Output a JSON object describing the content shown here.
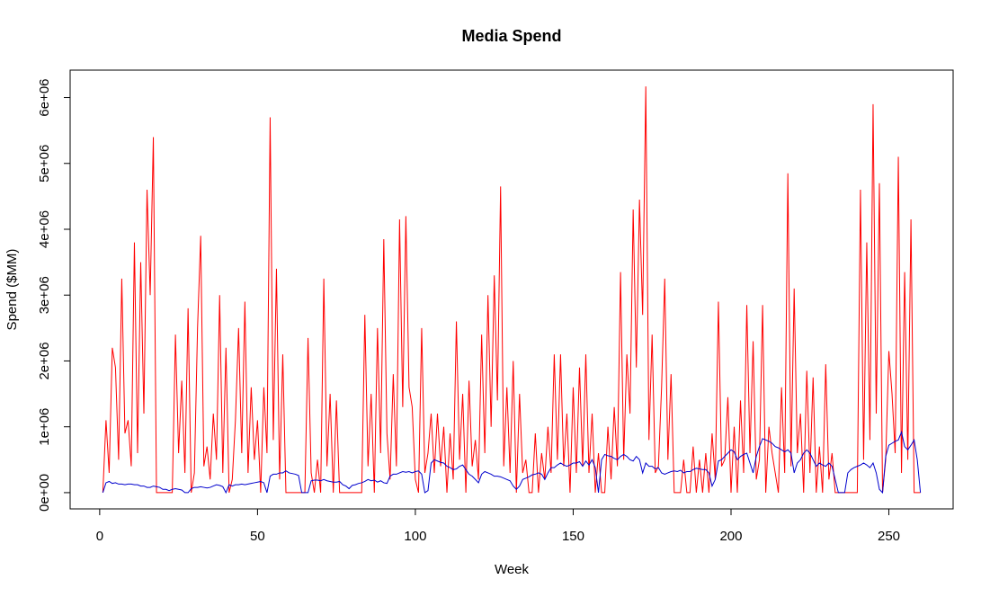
{
  "chart_data": {
    "type": "line",
    "title": "Media Spend",
    "xlabel": "Week",
    "ylabel": "Spend ($MM)",
    "x": [
      1,
      2,
      3,
      4,
      5,
      6,
      7,
      8,
      9,
      10,
      11,
      12,
      13,
      14,
      15,
      16,
      17,
      18,
      19,
      20,
      21,
      22,
      23,
      24,
      25,
      26,
      27,
      28,
      29,
      30,
      31,
      32,
      33,
      34,
      35,
      36,
      37,
      38,
      39,
      40,
      41,
      42,
      43,
      44,
      45,
      46,
      47,
      48,
      49,
      50,
      51,
      52,
      53,
      54,
      55,
      56,
      57,
      58,
      59,
      60,
      61,
      62,
      63,
      64,
      65,
      66,
      67,
      68,
      69,
      70,
      71,
      72,
      73,
      74,
      75,
      76,
      77,
      78,
      79,
      80,
      81,
      82,
      83,
      84,
      85,
      86,
      87,
      88,
      89,
      90,
      91,
      92,
      93,
      94,
      95,
      96,
      97,
      98,
      99,
      100,
      101,
      102,
      103,
      104,
      105,
      106,
      107,
      108,
      109,
      110,
      111,
      112,
      113,
      114,
      115,
      116,
      117,
      118,
      119,
      120,
      121,
      122,
      123,
      124,
      125,
      126,
      127,
      128,
      129,
      130,
      131,
      132,
      133,
      134,
      135,
      136,
      137,
      138,
      139,
      140,
      141,
      142,
      143,
      144,
      145,
      146,
      147,
      148,
      149,
      150,
      151,
      152,
      153,
      154,
      155,
      156,
      157,
      158,
      159,
      160,
      161,
      162,
      163,
      164,
      165,
      166,
      167,
      168,
      169,
      170,
      171,
      172,
      173,
      174,
      175,
      176,
      177,
      178,
      179,
      180,
      181,
      182,
      183,
      184,
      185,
      186,
      187,
      188,
      189,
      190,
      191,
      192,
      193,
      194,
      195,
      196,
      197,
      198,
      199,
      200,
      201,
      202,
      203,
      204,
      205,
      206,
      207,
      208,
      209,
      210,
      211,
      212,
      213,
      214,
      215,
      216,
      217,
      218,
      219,
      220,
      221,
      222,
      223,
      224,
      225,
      226,
      227,
      228,
      229,
      230,
      231,
      232,
      233,
      234,
      235,
      236,
      237,
      238,
      239,
      240,
      241,
      242,
      243,
      244,
      245,
      246,
      247,
      248,
      249,
      250,
      251,
      252,
      253,
      254,
      255,
      256,
      257,
      258,
      259,
      260
    ],
    "series": [
      {
        "color": "#ff0000",
        "values": [
          0,
          1100000.0,
          300000.0,
          2200000.0,
          1900000.0,
          500000.0,
          3250000.0,
          900000.0,
          1100000.0,
          400000.0,
          3800000.0,
          600000.0,
          3500000.0,
          1200000.0,
          4600000.0,
          3000000.0,
          5400000.0,
          0,
          0,
          0,
          0,
          0,
          0,
          2400000.0,
          600000.0,
          1700000.0,
          300000.0,
          2800000.0,
          0,
          300000.0,
          2500000.0,
          3900000.0,
          400000.0,
          700000.0,
          200000.0,
          1200000.0,
          500000.0,
          3000000.0,
          300000.0,
          2200000.0,
          0,
          200000.0,
          1100000.0,
          2500000.0,
          600000.0,
          2900000.0,
          300000.0,
          1600000.0,
          500000.0,
          1100000.0,
          0,
          1600000.0,
          600000.0,
          5700000.0,
          800000.0,
          3400000.0,
          200000.0,
          2100000.0,
          0,
          0,
          0,
          0,
          0,
          0,
          0,
          2350000.0,
          300000.0,
          0,
          500000.0,
          0,
          3250000.0,
          400000.0,
          1500000.0,
          0,
          1400000.0,
          0,
          0,
          0,
          0,
          0,
          0,
          0,
          0,
          2700000.0,
          400000.0,
          1500000.0,
          0,
          2500000.0,
          600000.0,
          3850000.0,
          900000.0,
          200000.0,
          1800000.0,
          400000.0,
          4150000.0,
          1300000.0,
          4200000.0,
          1600000.0,
          1300000.0,
          200000.0,
          0,
          2500000.0,
          300000.0,
          600000.0,
          1200000.0,
          300000.0,
          1200000.0,
          400000.0,
          1000000.0,
          0,
          900000.0,
          200000.0,
          2600000.0,
          500000.0,
          1500000.0,
          0,
          1700000.0,
          400000.0,
          800000.0,
          200000.0,
          2400000.0,
          600000.0,
          3000000.0,
          1000000.0,
          3300000.0,
          1400000.0,
          4650000.0,
          400000.0,
          1600000.0,
          300000.0,
          2000000.0,
          0,
          1500000.0,
          300000.0,
          500000.0,
          0,
          0,
          900000.0,
          0,
          600000.0,
          200000.0,
          1000000.0,
          300000.0,
          2100000.0,
          500000.0,
          2100000.0,
          400000.0,
          1200000.0,
          0,
          1600000.0,
          300000.0,
          1900000.0,
          400000.0,
          2100000.0,
          300000.0,
          1200000.0,
          0,
          600000.0,
          0,
          0,
          1000000.0,
          200000.0,
          1300000.0,
          400000.0,
          3350000.0,
          500000.0,
          2100000.0,
          1200000.0,
          4300000.0,
          1900000.0,
          4450000.0,
          2700000.0,
          6170000.0,
          800000.0,
          2400000.0,
          300000.0,
          400000.0,
          1600000.0,
          3250000.0,
          500000.0,
          1800000.0,
          0,
          0,
          0,
          500000.0,
          0,
          0,
          700000.0,
          0,
          500000.0,
          0,
          600000.0,
          0,
          900000.0,
          200000.0,
          2900000.0,
          400000.0,
          500000.0,
          1450000.0,
          0,
          1000000.0,
          0,
          1400000.0,
          300000.0,
          2850000.0,
          600000.0,
          2300000.0,
          200000.0,
          500000.0,
          2850000.0,
          0,
          1000000.0,
          600000.0,
          300000.0,
          0,
          1600000.0,
          300000.0,
          4850000.0,
          400000.0,
          3100000.0,
          600000.0,
          1200000.0,
          0,
          1850000.0,
          300000.0,
          1750000.0,
          0,
          700000.0,
          0,
          1950000.0,
          200000.0,
          600000.0,
          0,
          0,
          0,
          0,
          0,
          0,
          0,
          0,
          4600000.0,
          500000.0,
          3800000.0,
          800000.0,
          5900000.0,
          1200000.0,
          4700000.0,
          0,
          500000.0,
          2150000.0,
          1500000.0,
          600000.0,
          5100000.0,
          300000.0,
          3350000.0,
          500000.0,
          4150000.0,
          0,
          0,
          0
        ]
      },
      {
        "color": "#0000cd",
        "values": [
          0,
          150000.0,
          170000.0,
          140000.0,
          150000.0,
          130000.0,
          130000.0,
          120000.0,
          130000.0,
          130000.0,
          120000.0,
          120000.0,
          100000.0,
          100000.0,
          80000.0,
          80000.0,
          100000.0,
          90000.0,
          80000.0,
          50000.0,
          50000.0,
          30000.0,
          50000.0,
          60000.0,
          50000.0,
          40000.0,
          0,
          0,
          60000.0,
          80000.0,
          80000.0,
          90000.0,
          80000.0,
          70000.0,
          80000.0,
          100000.0,
          120000.0,
          110000.0,
          90000.0,
          0,
          120000.0,
          100000.0,
          120000.0,
          120000.0,
          130000.0,
          120000.0,
          130000.0,
          140000.0,
          150000.0,
          160000.0,
          170000.0,
          150000.0,
          0,
          250000.0,
          280000.0,
          280000.0,
          300000.0,
          300000.0,
          330000.0,
          300000.0,
          290000.0,
          280000.0,
          260000.0,
          0,
          0,
          0,
          180000.0,
          190000.0,
          190000.0,
          180000.0,
          200000.0,
          180000.0,
          170000.0,
          160000.0,
          160000.0,
          170000.0,
          120000.0,
          100000.0,
          60000.0,
          110000.0,
          120000.0,
          140000.0,
          150000.0,
          170000.0,
          200000.0,
          180000.0,
          190000.0,
          160000.0,
          180000.0,
          150000.0,
          140000.0,
          250000.0,
          280000.0,
          280000.0,
          300000.0,
          320000.0,
          310000.0,
          320000.0,
          300000.0,
          320000.0,
          330000.0,
          280000.0,
          0,
          30000.0,
          450000.0,
          500000.0,
          480000.0,
          460000.0,
          450000.0,
          400000.0,
          380000.0,
          350000.0,
          360000.0,
          400000.0,
          420000.0,
          350000.0,
          280000.0,
          250000.0,
          200000.0,
          150000.0,
          280000.0,
          320000.0,
          300000.0,
          280000.0,
          250000.0,
          250000.0,
          240000.0,
          220000.0,
          200000.0,
          180000.0,
          100000.0,
          50000.0,
          100000.0,
          200000.0,
          220000.0,
          240000.0,
          270000.0,
          280000.0,
          300000.0,
          280000.0,
          200000.0,
          300000.0,
          380000.0,
          380000.0,
          420000.0,
          450000.0,
          420000.0,
          400000.0,
          420000.0,
          450000.0,
          450000.0,
          470000.0,
          400000.0,
          480000.0,
          420000.0,
          500000.0,
          380000.0,
          0,
          500000.0,
          580000.0,
          560000.0,
          550000.0,
          520000.0,
          500000.0,
          550000.0,
          580000.0,
          550000.0,
          500000.0,
          480000.0,
          550000.0,
          500000.0,
          300000.0,
          450000.0,
          400000.0,
          400000.0,
          360000.0,
          380000.0,
          300000.0,
          280000.0,
          300000.0,
          320000.0,
          330000.0,
          320000.0,
          340000.0,
          300000.0,
          320000.0,
          320000.0,
          350000.0,
          370000.0,
          360000.0,
          350000.0,
          350000.0,
          300000.0,
          100000.0,
          200000.0,
          480000.0,
          500000.0,
          550000.0,
          600000.0,
          650000.0,
          620000.0,
          500000.0,
          550000.0,
          580000.0,
          600000.0,
          450000.0,
          300000.0,
          550000.0,
          700000.0,
          820000.0,
          800000.0,
          780000.0,
          750000.0,
          700000.0,
          680000.0,
          650000.0,
          620000.0,
          650000.0,
          600000.0,
          300000.0,
          450000.0,
          500000.0,
          600000.0,
          650000.0,
          600000.0,
          500000.0,
          400000.0,
          450000.0,
          420000.0,
          400000.0,
          450000.0,
          400000.0,
          200000.0,
          0,
          0,
          0,
          300000.0,
          350000.0,
          380000.0,
          400000.0,
          420000.0,
          450000.0,
          420000.0,
          380000.0,
          450000.0,
          300000.0,
          50000.0,
          0,
          550000.0,
          720000.0,
          750000.0,
          780000.0,
          800000.0,
          920000.0,
          700000.0,
          650000.0,
          720000.0,
          800000.0,
          500000.0,
          0
        ]
      }
    ],
    "xlim": [
      -9.36,
      270.36
    ],
    "xticks": [
      0,
      50,
      100,
      150,
      200,
      250
    ],
    "ylim": [
      -246800,
      6416800
    ],
    "yticks": [
      {
        "value": 0,
        "label": "0e+00"
      },
      {
        "value": 1000000,
        "label": "1e+06"
      },
      {
        "value": 2000000,
        "label": "2e+06"
      },
      {
        "value": 3000000,
        "label": "3e+06"
      },
      {
        "value": 4000000,
        "label": "4e+06"
      },
      {
        "value": 5000000,
        "label": "5e+06"
      },
      {
        "value": 6000000,
        "label": "6e+06"
      }
    ]
  }
}
